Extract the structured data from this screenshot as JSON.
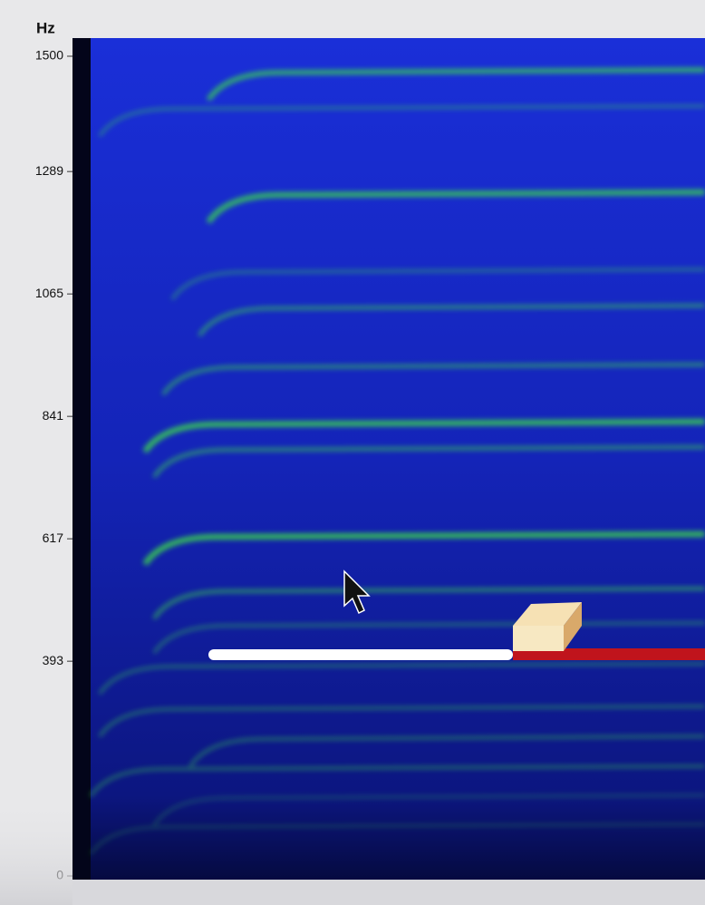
{
  "spectrogram": {
    "axis_label": "Hz",
    "ticks": [
      0,
      393,
      617,
      841,
      1065,
      1289,
      1500
    ]
  }
}
